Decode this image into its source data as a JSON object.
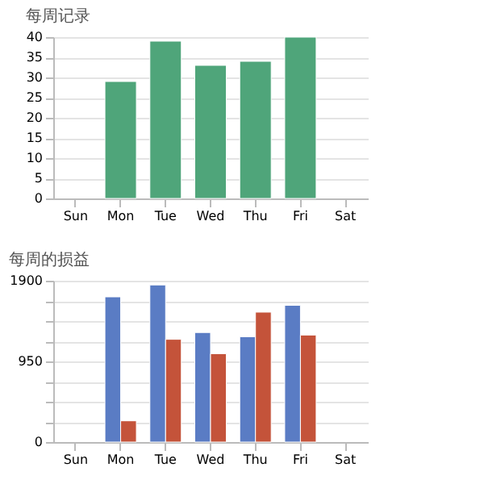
{
  "chart_data": [
    {
      "type": "bar",
      "title": "每周记录",
      "categories": [
        "Sun",
        "Mon",
        "Tue",
        "Wed",
        "Thu",
        "Fri",
        "Sat"
      ],
      "values": [
        null,
        29,
        39,
        33,
        34,
        40,
        null
      ],
      "color": "#4fa57a",
      "ylim": [
        0,
        40
      ],
      "yticks": [
        0,
        5,
        10,
        15,
        20,
        25,
        30,
        35,
        40
      ],
      "grid": "y"
    },
    {
      "type": "bar",
      "title": "每周的损益",
      "categories": [
        "Sun",
        "Mon",
        "Tue",
        "Wed",
        "Thu",
        "Fri",
        "Sat"
      ],
      "series": [
        {
          "color": "#5a7cc4",
          "values": [
            null,
            1710,
            1850,
            1290,
            1240,
            1610,
            null
          ]
        },
        {
          "color": "#c4533a",
          "values": [
            null,
            250,
            1210,
            1040,
            1530,
            1260,
            null
          ]
        }
      ],
      "ylim": [
        0,
        1900
      ],
      "yticks": [
        0,
        {
          "value": 237.5,
          "label": null
        },
        {
          "value": 475,
          "label": null
        },
        {
          "value": 712.5,
          "label": null
        },
        950,
        {
          "value": 1187.5,
          "label": null
        },
        {
          "value": 1425,
          "label": null
        },
        {
          "value": 1662.5,
          "label": null
        },
        1900
      ],
      "grid": "y"
    }
  ]
}
